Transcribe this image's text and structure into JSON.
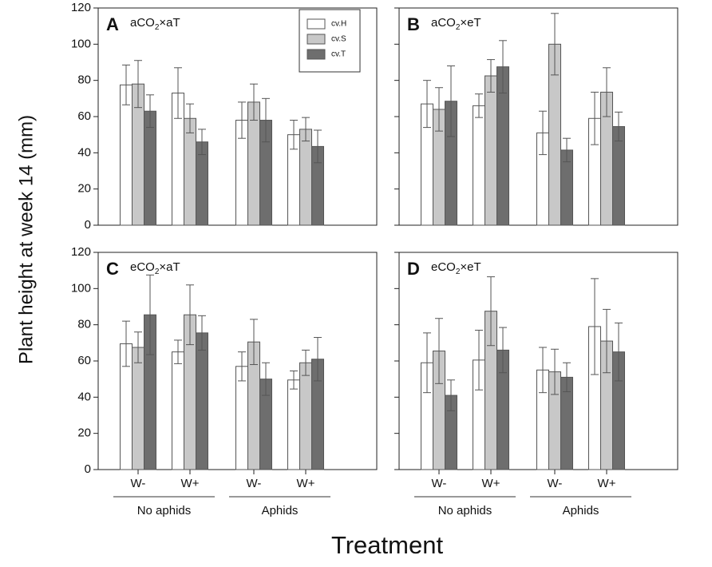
{
  "chart_data": {
    "type": "bar",
    "ylabel": "Plant height at week 14 (mm)",
    "xlabel": "Treatment",
    "ylim": [
      0,
      120
    ],
    "yticks": [
      "0",
      "20",
      "40",
      "60",
      "80",
      "100",
      "120"
    ],
    "categories": [
      "W-",
      "W+",
      "W-",
      "W+"
    ],
    "groups": [
      {
        "label": "No aphids",
        "categories": [
          0,
          1
        ]
      },
      {
        "label": "Aphids",
        "categories": [
          2,
          3
        ]
      }
    ],
    "legend": [
      {
        "name": "cv.H",
        "color": "#ffffff"
      },
      {
        "name": "cv.S",
        "color": "#c8c8c8"
      },
      {
        "name": "cv.T",
        "color": "#6e6e6e"
      }
    ],
    "panels": [
      {
        "letter": "A",
        "condition": {
          "a": "aCO",
          "sub": "2",
          "b": "×aT"
        },
        "series": [
          {
            "name": "cv.H",
            "values": [
              77.5,
              73,
              58,
              50
            ],
            "errors": [
              11,
              14,
              10,
              8
            ]
          },
          {
            "name": "cv.S",
            "values": [
              78,
              59,
              68,
              53
            ],
            "errors": [
              13,
              8,
              10,
              6.5
            ]
          },
          {
            "name": "cv.T",
            "values": [
              63,
              46,
              58,
              43.5
            ],
            "errors": [
              9,
              7,
              12,
              9
            ]
          }
        ]
      },
      {
        "letter": "B",
        "condition": {
          "a": "aCO",
          "sub": "2",
          "b": "×eT"
        },
        "series": [
          {
            "name": "cv.H",
            "values": [
              67,
              66,
              51,
              59
            ],
            "errors": [
              13,
              6.5,
              12,
              14.5
            ]
          },
          {
            "name": "cv.S",
            "values": [
              64,
              82.5,
              100,
              73.5
            ],
            "errors": [
              12,
              9,
              17,
              13.5
            ]
          },
          {
            "name": "cv.T",
            "values": [
              68.5,
              87.5,
              41.5,
              54.5
            ],
            "errors": [
              19.5,
              14.5,
              6.5,
              8
            ]
          }
        ]
      },
      {
        "letter": "C",
        "condition": {
          "a": "eCO",
          "sub": "2",
          "b": "×aT"
        },
        "series": [
          {
            "name": "cv.H",
            "values": [
              69.5,
              65,
              57,
              49.5
            ],
            "errors": [
              12.5,
              6.5,
              8,
              5
            ]
          },
          {
            "name": "cv.S",
            "values": [
              67.5,
              85.5,
              70.5,
              59
            ],
            "errors": [
              8.5,
              16.5,
              12.5,
              7
            ]
          },
          {
            "name": "cv.T",
            "values": [
              85.5,
              75.5,
              50,
              61
            ],
            "errors": [
              22,
              9.5,
              9,
              12
            ]
          }
        ]
      },
      {
        "letter": "D",
        "condition": {
          "a": "eCO",
          "sub": "2",
          "b": "×eT"
        },
        "series": [
          {
            "name": "cv.H",
            "values": [
              59,
              60.5,
              55,
              79
            ],
            "errors": [
              16.5,
              16.5,
              12.5,
              26.5
            ]
          },
          {
            "name": "cv.S",
            "values": [
              65.5,
              87.5,
              54,
              71
            ],
            "errors": [
              18,
              19,
              12.5,
              17.5
            ]
          },
          {
            "name": "cv.T",
            "values": [
              41,
              66,
              51,
              65
            ],
            "errors": [
              8.5,
              12.5,
              8,
              16
            ]
          }
        ]
      }
    ]
  }
}
